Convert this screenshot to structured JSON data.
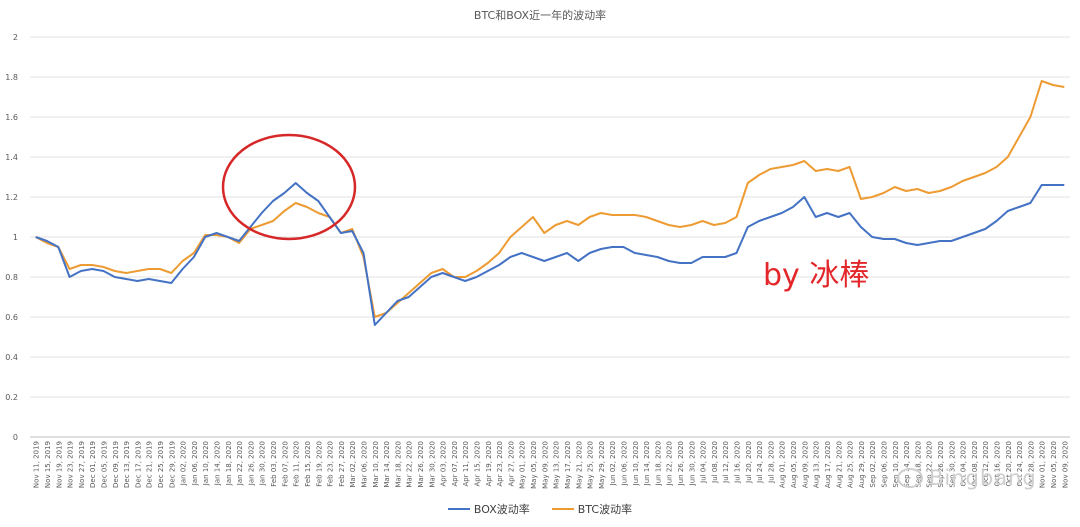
{
  "chart_data": {
    "type": "line",
    "title": "BTC和BOX近一年的波动率",
    "xlabel": "",
    "ylabel": "",
    "ylim": [
      0,
      2
    ],
    "yticks": [
      "0",
      "0.2",
      "0.4",
      "0.6",
      "0.8",
      "1",
      "1.2",
      "1.4",
      "1.6",
      "1.8",
      "2"
    ],
    "grid": true,
    "legend_position": "bottom",
    "x_tick_labels": [
      "Nov 11, 2019",
      "Nov 15, 2019",
      "Nov 19, 2019",
      "Nov 23, 2019",
      "Nov 27, 2019",
      "Dec 01, 2019",
      "Dec 05, 2019",
      "Dec 09, 2019",
      "Dec 13, 2019",
      "Dec 17, 2019",
      "Dec 21, 2019",
      "Dec 25, 2019",
      "Dec 29, 2019",
      "Jan 02, 2020",
      "Jan 06, 2020",
      "Jan 10, 2020",
      "Jan 14, 2020",
      "Jan 18, 2020",
      "Jan 22, 2020",
      "Jan 26, 2020",
      "Jan 30, 2020",
      "Feb 03, 2020",
      "Feb 07, 2020",
      "Feb 11, 2020",
      "Feb 15, 2020",
      "Feb 19, 2020",
      "Feb 23, 2020",
      "Feb 27, 2020",
      "Mar 02, 2020",
      "Mar 06, 2020",
      "Mar 10, 2020",
      "Mar 14, 2020",
      "Mar 18, 2020",
      "Mar 22, 2020",
      "Mar 26, 2020",
      "Mar 30, 2020",
      "Apr 03, 2020",
      "Apr 07, 2020",
      "Apr 11, 2020",
      "Apr 15, 2020",
      "Apr 19, 2020",
      "Apr 23, 2020",
      "Apr 27, 2020",
      "May 01, 2020",
      "May 05, 2020",
      "May 09, 2020",
      "May 13, 2020",
      "May 17, 2020",
      "May 21, 2020",
      "May 25, 2020",
      "May 29, 2020",
      "Jun 02, 2020",
      "Jun 06, 2020",
      "Jun 10, 2020",
      "Jun 14, 2020",
      "Jun 18, 2020",
      "Jun 22, 2020",
      "Jun 26, 2020",
      "Jun 30, 2020",
      "Jul 04, 2020",
      "Jul 08, 2020",
      "Jul 12, 2020",
      "Jul 16, 2020",
      "Jul 20, 2020",
      "Jul 24, 2020",
      "Jul 28, 2020",
      "Aug 01, 2020",
      "Aug 05, 2020",
      "Aug 09, 2020",
      "Aug 13, 2020",
      "Aug 17, 2020",
      "Aug 21, 2020",
      "Aug 25, 2020",
      "Aug 29, 2020",
      "Sep 02, 2020",
      "Sep 06, 2020",
      "Sep 10, 2020",
      "Sep 14, 2020",
      "Sep 18, 2020",
      "Sep 22, 2020",
      "Sep 26, 2020",
      "Sep 30, 2020",
      "Oct 04, 2020",
      "Oct 08, 2020",
      "Oct 12, 2020",
      "Oct 16, 2020",
      "Oct 20, 2020",
      "Oct 24, 2020",
      "Oct 28, 2020",
      "Nov 01, 2020",
      "Nov 05, 2020",
      "Nov 09, 2020"
    ],
    "x": [
      "2019-11-11",
      "2019-11-15",
      "2019-11-19",
      "2019-11-23",
      "2019-11-27",
      "2019-12-01",
      "2019-12-05",
      "2019-12-09",
      "2019-12-13",
      "2019-12-17",
      "2019-12-21",
      "2019-12-25",
      "2019-12-29",
      "2020-01-02",
      "2020-01-06",
      "2020-01-10",
      "2020-01-14",
      "2020-01-18",
      "2020-01-22",
      "2020-01-26",
      "2020-01-30",
      "2020-02-03",
      "2020-02-07",
      "2020-02-11",
      "2020-02-15",
      "2020-02-19",
      "2020-02-23",
      "2020-02-27",
      "2020-03-02",
      "2020-03-06",
      "2020-03-10",
      "2020-03-14",
      "2020-03-18",
      "2020-03-22",
      "2020-03-26",
      "2020-03-30",
      "2020-04-03",
      "2020-04-07",
      "2020-04-11",
      "2020-04-15",
      "2020-04-19",
      "2020-04-23",
      "2020-04-27",
      "2020-05-01",
      "2020-05-05",
      "2020-05-09",
      "2020-05-13",
      "2020-05-17",
      "2020-05-21",
      "2020-05-25",
      "2020-05-29",
      "2020-06-02",
      "2020-06-06",
      "2020-06-10",
      "2020-06-14",
      "2020-06-18",
      "2020-06-22",
      "2020-06-26",
      "2020-06-30",
      "2020-07-04",
      "2020-07-08",
      "2020-07-12",
      "2020-07-16",
      "2020-07-20",
      "2020-07-24",
      "2020-07-28",
      "2020-08-01",
      "2020-08-05",
      "2020-08-09",
      "2020-08-13",
      "2020-08-17",
      "2020-08-21",
      "2020-08-25",
      "2020-08-29",
      "2020-09-02",
      "2020-09-06",
      "2020-09-10",
      "2020-09-14",
      "2020-09-18",
      "2020-09-22",
      "2020-09-26",
      "2020-09-30",
      "2020-10-04",
      "2020-10-08",
      "2020-10-12",
      "2020-10-16",
      "2020-10-20",
      "2020-10-24",
      "2020-10-28",
      "2020-11-01",
      "2020-11-05",
      "2020-11-09"
    ],
    "series": [
      {
        "name": "BOX波动率",
        "color": "#4472c4",
        "values": [
          1.0,
          0.98,
          0.95,
          0.8,
          0.83,
          0.84,
          0.83,
          0.8,
          0.79,
          0.78,
          0.79,
          0.78,
          0.77,
          0.84,
          0.9,
          1.0,
          1.02,
          1.0,
          0.98,
          1.05,
          1.12,
          1.18,
          1.22,
          1.27,
          1.22,
          1.18,
          1.1,
          1.02,
          1.03,
          0.92,
          0.56,
          0.62,
          0.68,
          0.7,
          0.75,
          0.8,
          0.82,
          0.8,
          0.78,
          0.8,
          0.83,
          0.86,
          0.9,
          0.92,
          0.9,
          0.88,
          0.9,
          0.92,
          0.88,
          0.92,
          0.94,
          0.95,
          0.95,
          0.92,
          0.91,
          0.9,
          0.88,
          0.87,
          0.87,
          0.9,
          0.9,
          0.9,
          0.92,
          1.05,
          1.08,
          1.1,
          1.12,
          1.15,
          1.2,
          1.1,
          1.12,
          1.1,
          1.12,
          1.05,
          1.0,
          0.99,
          0.99,
          0.97,
          0.96,
          0.97,
          0.98,
          0.98,
          1.0,
          1.02,
          1.04,
          1.08,
          1.13,
          1.15,
          1.17,
          1.26,
          1.26,
          1.26
        ]
      },
      {
        "name": "BTC波动率",
        "color": "#ed9b33",
        "values": [
          1.0,
          0.97,
          0.95,
          0.84,
          0.86,
          0.86,
          0.85,
          0.83,
          0.82,
          0.83,
          0.84,
          0.84,
          0.82,
          0.88,
          0.92,
          1.01,
          1.01,
          1.0,
          0.97,
          1.04,
          1.06,
          1.08,
          1.13,
          1.17,
          1.15,
          1.12,
          1.1,
          1.02,
          1.04,
          0.9,
          0.6,
          0.62,
          0.67,
          0.72,
          0.77,
          0.82,
          0.84,
          0.8,
          0.8,
          0.83,
          0.87,
          0.92,
          1.0,
          1.05,
          1.1,
          1.02,
          1.06,
          1.08,
          1.06,
          1.1,
          1.12,
          1.11,
          1.11,
          1.11,
          1.1,
          1.08,
          1.06,
          1.05,
          1.06,
          1.08,
          1.06,
          1.07,
          1.1,
          1.27,
          1.31,
          1.34,
          1.35,
          1.36,
          1.38,
          1.33,
          1.34,
          1.33,
          1.35,
          1.19,
          1.2,
          1.22,
          1.25,
          1.23,
          1.24,
          1.22,
          1.23,
          1.25,
          1.28,
          1.3,
          1.32,
          1.35,
          1.4,
          1.5,
          1.6,
          1.78,
          1.76,
          1.75
        ]
      }
    ]
  },
  "annotation_text": "by 冰棒",
  "watermark_text": "Bingbang"
}
